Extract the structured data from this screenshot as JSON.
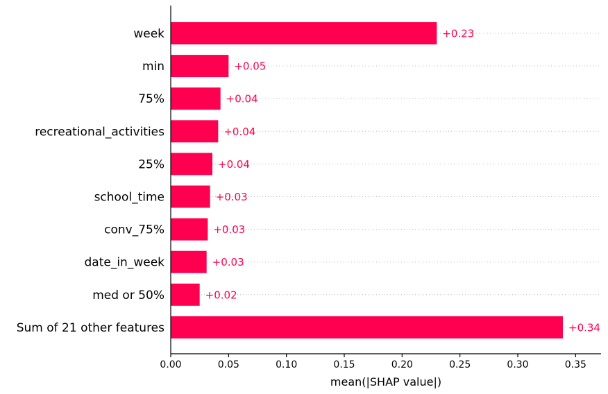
{
  "chart_data": {
    "type": "bar",
    "orientation": "horizontal",
    "title": "",
    "xlabel": "mean(|SHAP value|)",
    "ylabel": "",
    "xlim": [
      0,
      0.372
    ],
    "xticks": [
      0,
      0.05,
      0.1,
      0.15,
      0.2,
      0.25,
      0.3,
      0.35
    ],
    "xtick_labels": [
      "0.00",
      "0.05",
      "0.10",
      "0.15",
      "0.20",
      "0.25",
      "0.30",
      "0.35"
    ],
    "categories": [
      "week",
      "min",
      "75%",
      "recreational_activities",
      "25%",
      "school_time",
      "conv_75%",
      "date_in_week",
      "med or 50%",
      "Sum of 21 other features"
    ],
    "values": [
      0.23,
      0.05,
      0.043,
      0.041,
      0.036,
      0.034,
      0.032,
      0.031,
      0.025,
      0.339
    ],
    "value_labels": [
      "+0.23",
      "+0.05",
      "+0.04",
      "+0.04",
      "+0.04",
      "+0.03",
      "+0.03",
      "+0.03",
      "+0.02",
      "+0.34"
    ],
    "bar_color": "#ff0051",
    "label_color": "#ff0051",
    "grid": "horizontal dotted guide lines"
  }
}
